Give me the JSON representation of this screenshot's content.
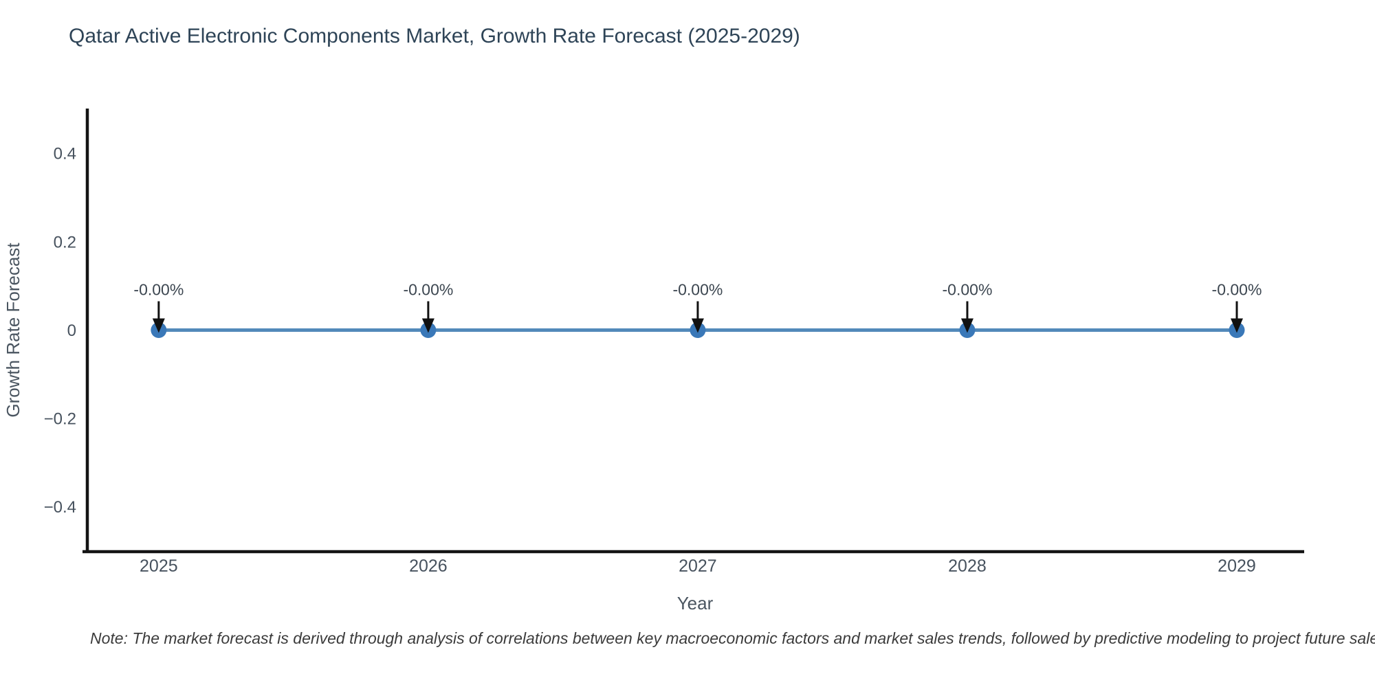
{
  "figure": {
    "title": "Qatar Active Electronic Components Market, Growth Rate Forecast (2025-2029)",
    "note": "Note: The market forecast is derived through analysis of correlations between key macroeconomic factors and market sales trends, followed by predictive modeling to project future sales."
  },
  "chart_data": {
    "type": "line",
    "title": "Qatar Active Electronic Components Market, Growth Rate Forecast (2025-2029)",
    "x": [
      2025,
      2026,
      2027,
      2028,
      2029
    ],
    "values": [
      0,
      0,
      0,
      0,
      0
    ],
    "point_labels": [
      "-0.00%",
      "-0.00%",
      "-0.00%",
      "-0.00%",
      "-0.00%"
    ],
    "xlabel": "Year",
    "ylabel": "Growth Rate Forecast",
    "xlim": [
      2024.73,
      2029.25
    ],
    "ylim": [
      -0.5,
      0.5
    ],
    "xticks": [
      2025,
      2026,
      2027,
      2028,
      2029
    ],
    "xtick_labels": [
      "2025",
      "2026",
      "2027",
      "2028",
      "2029"
    ],
    "yticks": [
      -0.4,
      -0.2,
      0,
      0.2,
      0.4
    ],
    "ytick_labels": [
      "−0.4",
      "−0.2",
      "0",
      "0.2",
      "0.4"
    ],
    "grid": false,
    "legend": "none",
    "colors": {
      "line": "#5289ba",
      "marker": "#3a78b8",
      "axis": "#141414",
      "arrow": "#111111",
      "tick_label": "#47525e",
      "axis_title": "#4a5560",
      "annotation": "#3c4650"
    }
  }
}
